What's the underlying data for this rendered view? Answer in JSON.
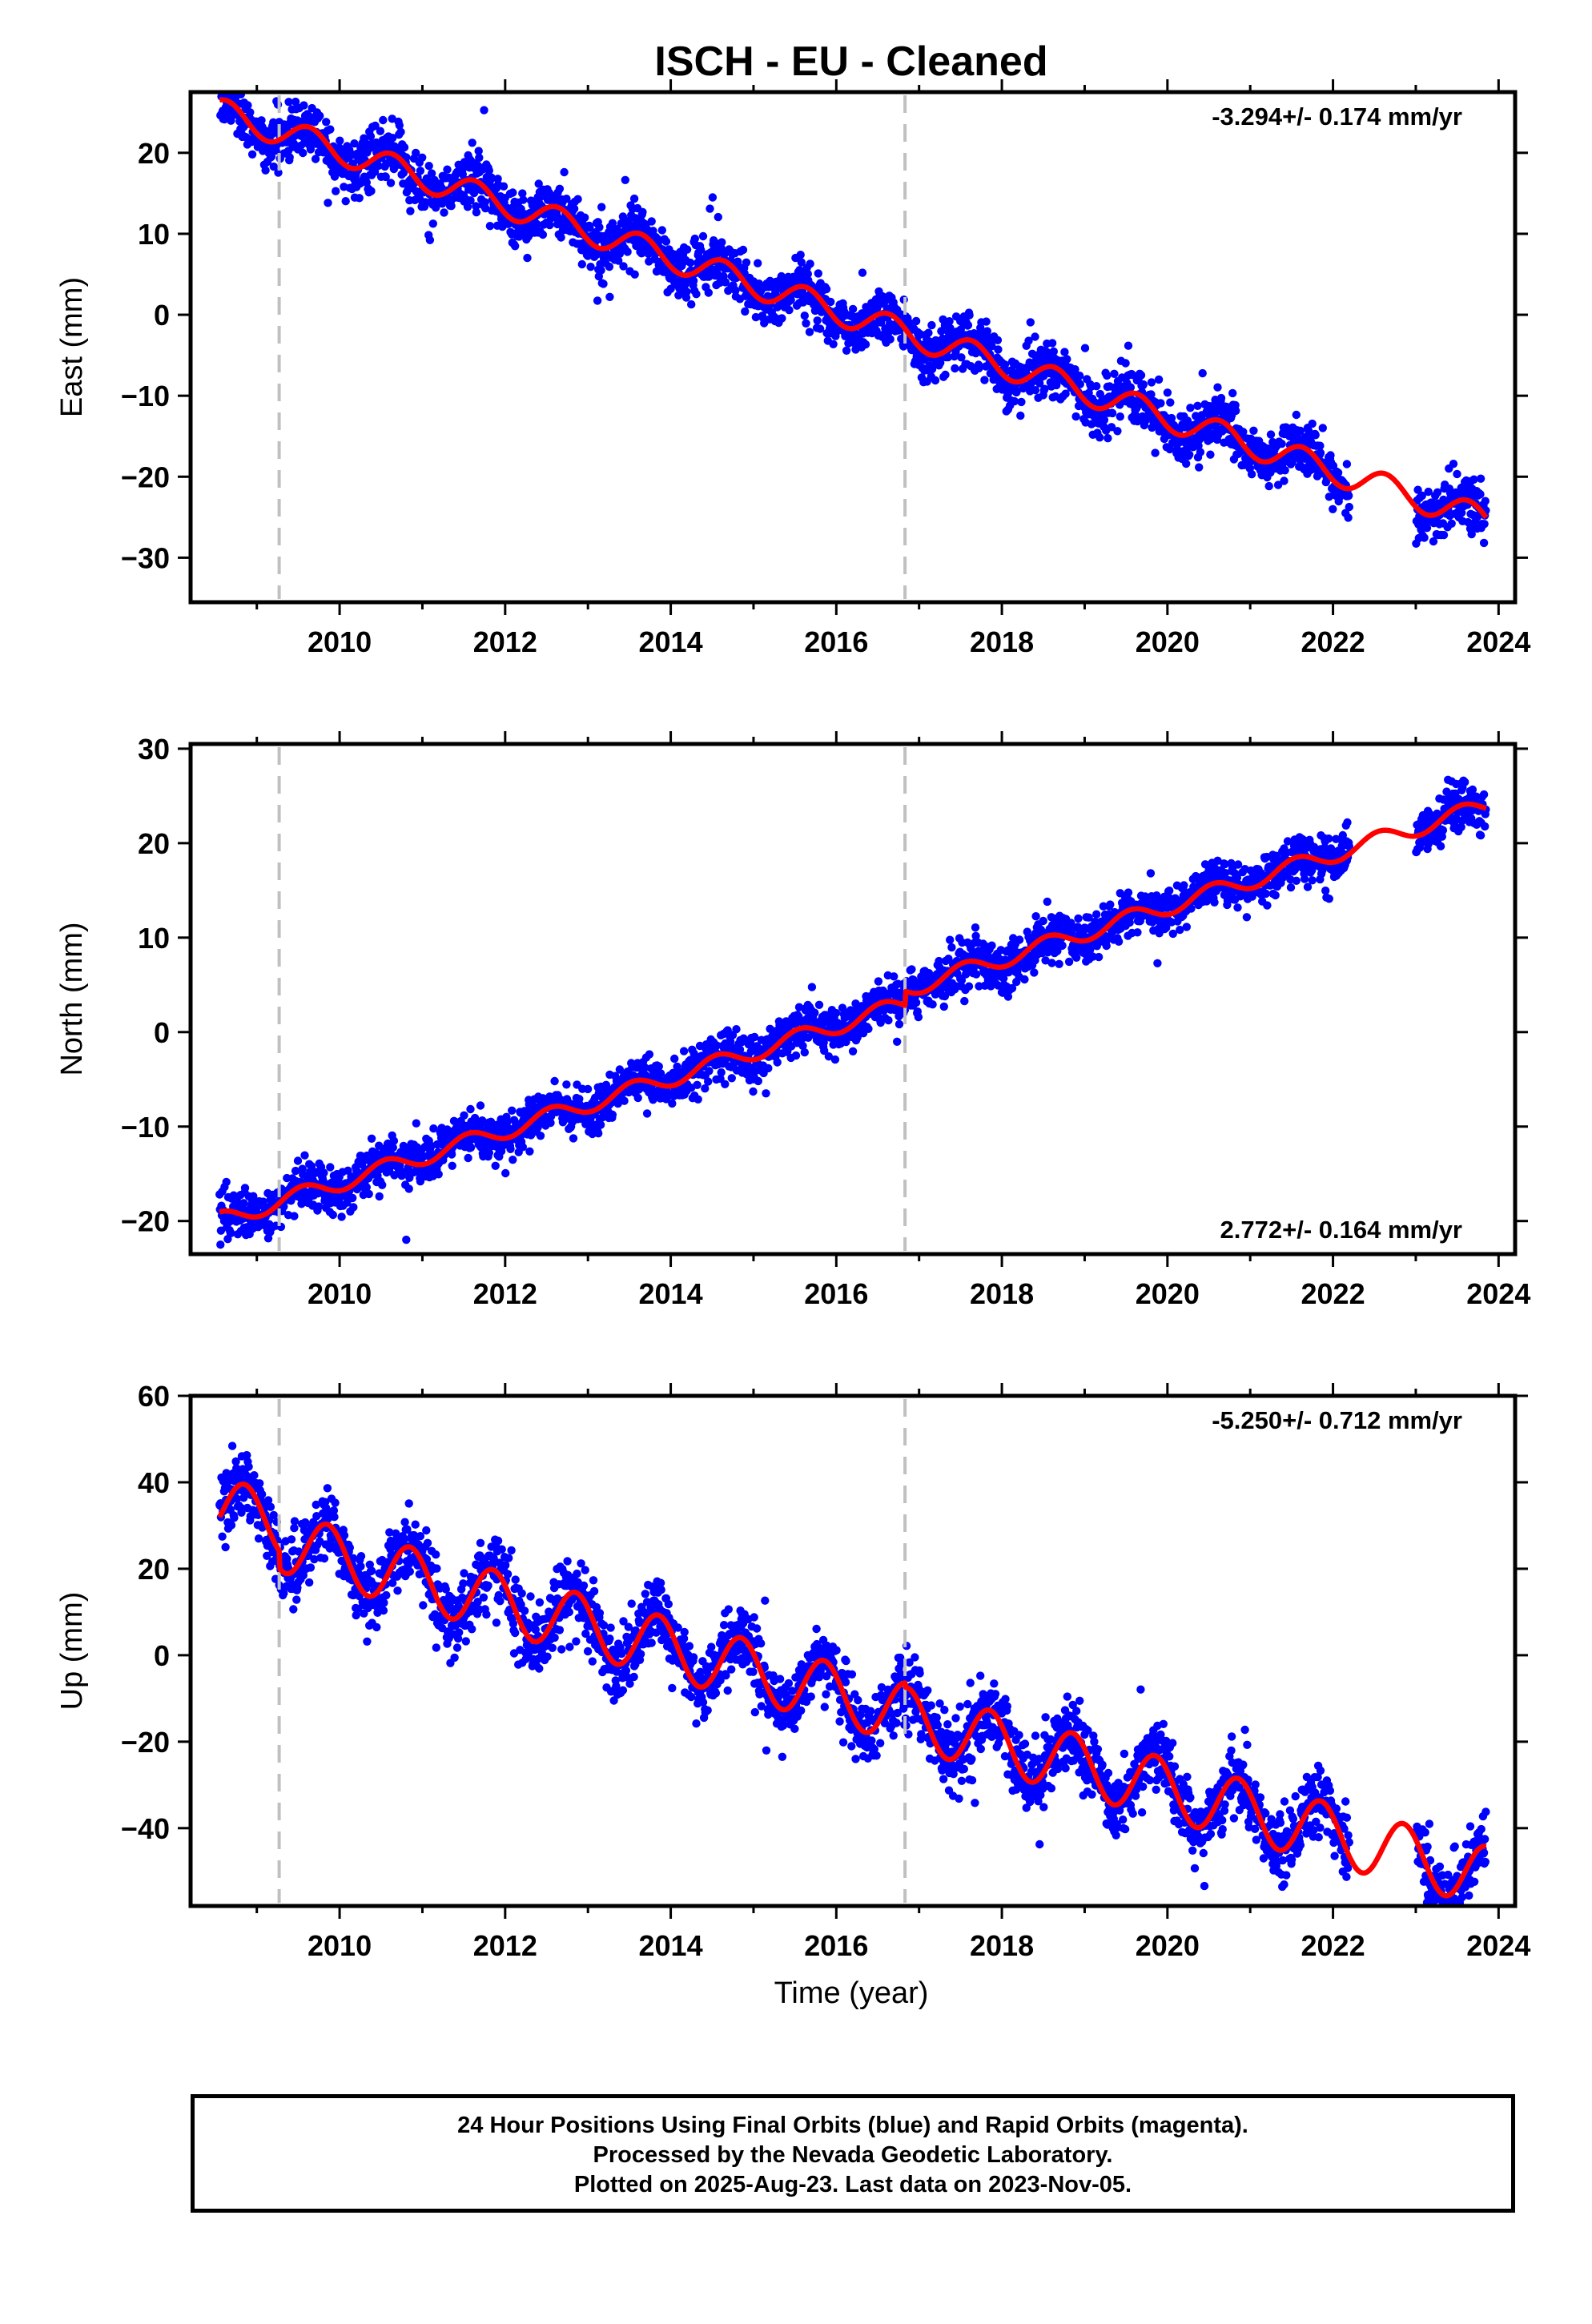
{
  "title": "ISCH  - EU - Cleaned",
  "xlabel": "Time (year)",
  "footer": {
    "line1": "24 Hour Positions Using Final Orbits (blue) and Rapid Orbits (magenta).",
    "line2": "Processed by the Nevada Geodetic Laboratory.",
    "line3": "Plotted on 2025-Aug-23. Last data on 2023-Nov-05."
  },
  "colors": {
    "data": "#0000ff",
    "model": "#ff0000",
    "break_line": "#c0c0c0",
    "frame": "#000000"
  },
  "chart_data": [
    {
      "type": "scatter",
      "ylabel": "East (mm)",
      "rate": "-3.294+/- 0.174 mm/yr",
      "rate_position": "top-right",
      "xlim": [
        2008.2,
        2024.2
      ],
      "ylim": [
        -35.5,
        27.5
      ],
      "xticks": [
        2010,
        2012,
        2014,
        2016,
        2018,
        2020,
        2022,
        2024
      ],
      "yticks": [
        -30,
        -20,
        -10,
        0,
        10,
        20
      ],
      "breaks": [
        2009.27,
        2016.83
      ],
      "data_start": 2008.55,
      "data_end": 2023.85,
      "data_gap": [
        2022.2,
        2023.0
      ],
      "model": {
        "ref_year": 2016.0,
        "offset": 0.5,
        "rate": -3.294,
        "amp": 1.7,
        "phase_year": 0.38,
        "steps": [
          {
            "year": 2016.83,
            "size": 0
          }
        ]
      },
      "scatter_sigma": 1.7
    },
    {
      "type": "scatter",
      "ylabel": "North (mm)",
      "rate": "2.772+/- 0.164 mm/yr",
      "rate_position": "bottom-right",
      "xlim": [
        2008.2,
        2024.2
      ],
      "ylim": [
        -23.5,
        30.5
      ],
      "xticks": [
        2010,
        2012,
        2014,
        2016,
        2018,
        2020,
        2022,
        2024
      ],
      "yticks": [
        -20,
        -10,
        0,
        10,
        20,
        30
      ],
      "breaks": [
        2009.27,
        2016.83
      ],
      "data_start": 2008.55,
      "data_end": 2023.85,
      "data_gap": [
        2022.2,
        2023.0
      ],
      "model": {
        "ref_year": 2016.0,
        "offset": 0.7,
        "rate": 2.772,
        "amp": 0.9,
        "phase_year": 0.3,
        "steps": [
          {
            "year": 2016.83,
            "size": 1.5
          }
        ]
      },
      "scatter_sigma": 1.2
    },
    {
      "type": "scatter",
      "ylabel": "Up (mm)",
      "rate": "-5.250+/- 0.712 mm/yr",
      "rate_position": "top-right",
      "xlim": [
        2008.2,
        2024.2
      ],
      "ylim": [
        -58,
        60
      ],
      "xticks": [
        2010,
        2012,
        2014,
        2016,
        2018,
        2020,
        2022,
        2024
      ],
      "yticks": [
        -40,
        -20,
        0,
        20,
        40,
        60
      ],
      "breaks": [
        2009.27,
        2016.83
      ],
      "data_start": 2008.55,
      "data_end": 2023.85,
      "data_gap": [
        2022.2,
        2023.0
      ],
      "model": {
        "ref_year": 2016.0,
        "offset": -5.0,
        "rate": -5.25,
        "amp": 7.0,
        "phase_year": 0.6,
        "steps": [
          {
            "year": 2009.27,
            "size": -4
          },
          {
            "year": 2016.83,
            "size": -1
          }
        ]
      },
      "scatter_sigma": 4.0
    }
  ]
}
